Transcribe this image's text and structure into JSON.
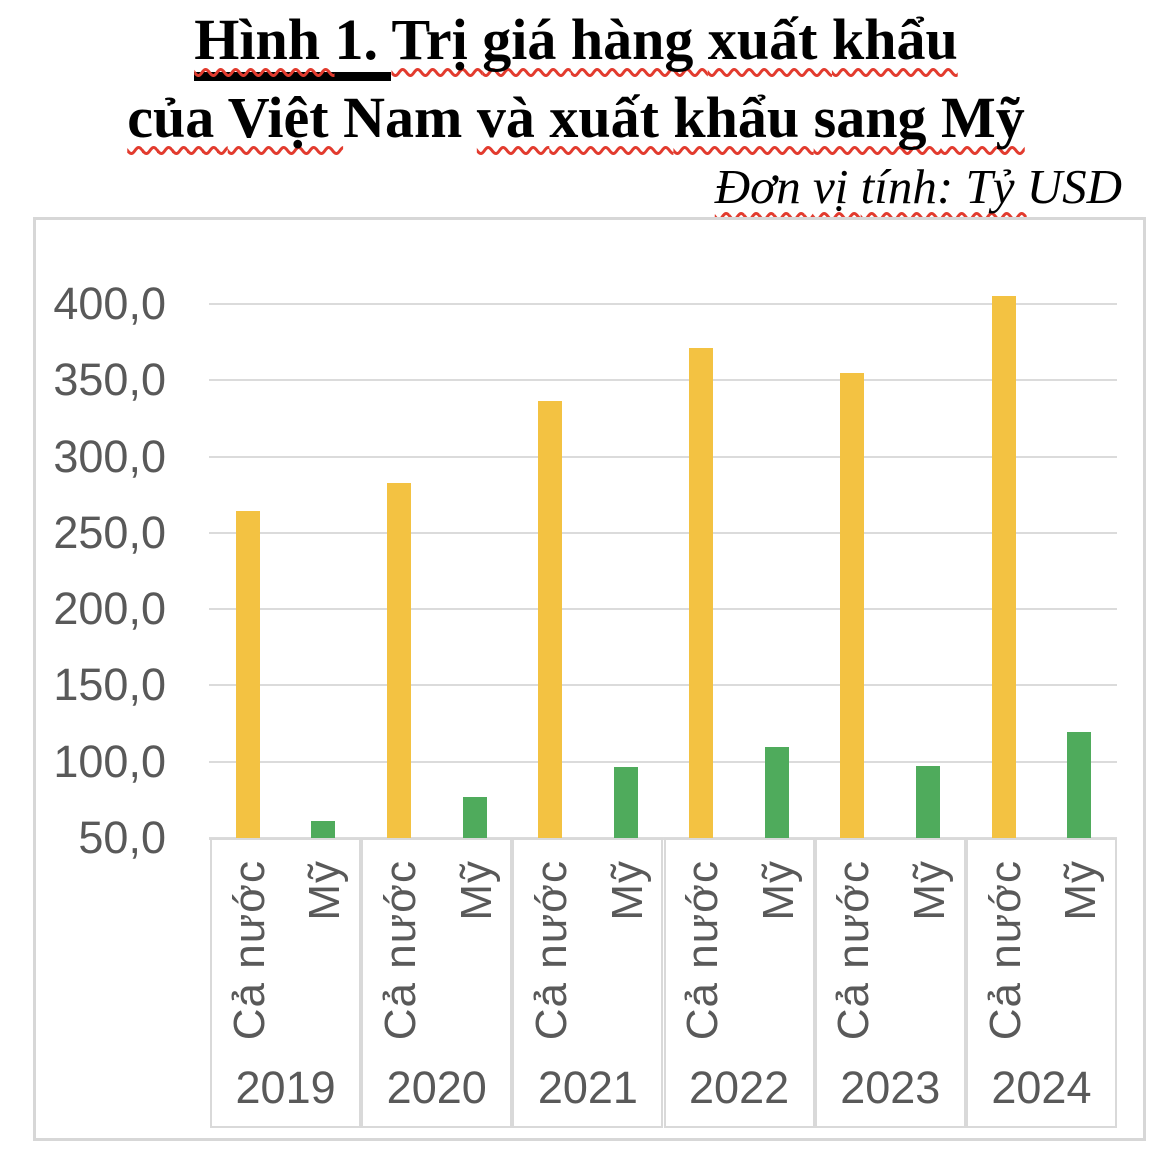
{
  "title": {
    "line1_words": [
      {
        "text": "Hình",
        "sq": true,
        "ul": true
      },
      {
        "text": "1.",
        "sq": false,
        "ul": true
      },
      {
        "text": "Trị",
        "sq": true,
        "ul": false
      },
      {
        "text": "giá",
        "sq": true,
        "ul": false
      },
      {
        "text": "hàng",
        "sq": true,
        "ul": false
      },
      {
        "text": "xuất",
        "sq": true,
        "ul": false
      },
      {
        "text": "khẩu",
        "sq": true,
        "ul": false
      }
    ],
    "line2_words": [
      {
        "text": "của",
        "sq": true,
        "ul": false
      },
      {
        "text": "Việt",
        "sq": true,
        "ul": false
      },
      {
        "text": "Nam",
        "sq": false,
        "ul": false
      },
      {
        "text": "và",
        "sq": true,
        "ul": false
      },
      {
        "text": "xuất",
        "sq": true,
        "ul": false
      },
      {
        "text": "khẩu",
        "sq": true,
        "ul": false
      },
      {
        "text": "sang",
        "sq": true,
        "ul": false
      },
      {
        "text": "Mỹ",
        "sq": true,
        "ul": false
      }
    ],
    "subtitle_words": [
      {
        "text": "Đơn",
        "sq": true,
        "ul": false
      },
      {
        "text": "vị",
        "sq": true,
        "ul": false
      },
      {
        "text": "tính:",
        "sq": true,
        "ul": false
      },
      {
        "text": "Tỷ",
        "sq": true,
        "ul": false
      },
      {
        "text": "USD",
        "sq": false,
        "ul": false
      }
    ]
  },
  "chart_data": {
    "type": "bar",
    "title": "Hình 1. Trị giá hàng xuất khẩu của Việt Nam và xuất khẩu sang Mỹ",
    "unit_note": "Đơn vị tính: Tỷ USD",
    "categories": [
      "2019",
      "2020",
      "2021",
      "2022",
      "2023",
      "2024"
    ],
    "group_labels": [
      "Cả nước",
      "Mỹ"
    ],
    "series": [
      {
        "name": "Cả nước",
        "color": "#F3C242",
        "values": [
          264.2,
          282.7,
          336.2,
          371.3,
          354.7,
          405.5
        ]
      },
      {
        "name": "Mỹ",
        "color": "#4FAB5C",
        "values": [
          61.3,
          77.1,
          96.3,
          109.4,
          97.0,
          119.5
        ]
      }
    ],
    "xlabel": "",
    "ylabel": "",
    "ylim": [
      50,
      410
    ],
    "y_axis": {
      "min": 50,
      "max": 400,
      "step": 50,
      "tick_labels": [
        "400,0",
        "350,0",
        "300,0",
        "250,0",
        "200,0",
        "150,0",
        "100,0",
        "50,0"
      ]
    },
    "grid": true,
    "legend_position": "none",
    "colors": {
      "gridline": "#DBDBDB",
      "axis_text": "#595959",
      "chart_border": "#D7D7D7",
      "squiggle_red": "#E23B2E"
    }
  }
}
